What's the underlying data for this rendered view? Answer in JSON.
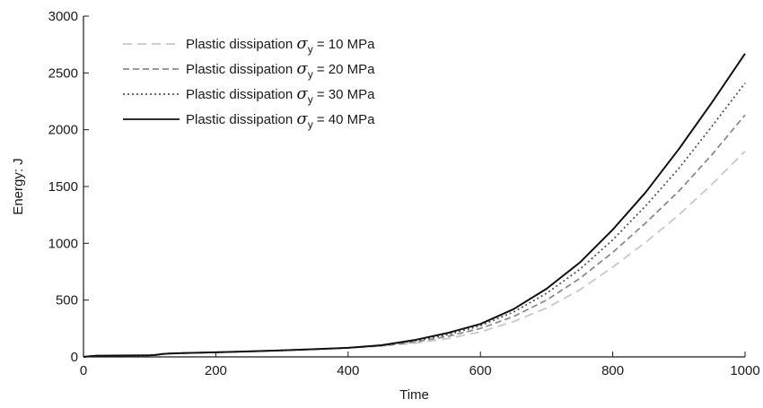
{
  "chart_data": {
    "type": "line",
    "title": "",
    "xlabel": "Time",
    "ylabel": "Energy: J",
    "xlim": [
      0,
      1000
    ],
    "ylim": [
      0,
      3000
    ],
    "x_ticks": [
      0,
      200,
      400,
      600,
      800,
      1000
    ],
    "y_ticks": [
      0,
      500,
      1000,
      1500,
      2000,
      2500,
      3000
    ],
    "grid": false,
    "legend_position": "top-left",
    "x": [
      0,
      10,
      20,
      50,
      100,
      110,
      120,
      130,
      150,
      200,
      250,
      300,
      350,
      400,
      450,
      500,
      550,
      600,
      650,
      700,
      750,
      800,
      850,
      900,
      950,
      1000
    ],
    "series": [
      {
        "legend_prefix": "Plastic dissipation ",
        "legend_symbol": "σ",
        "legend_subscript": "y",
        "legend_value": " = 10 MPa",
        "color": "#c8c8c8",
        "dash": "10,6",
        "values": [
          0,
          6,
          10,
          12,
          14,
          18,
          26,
          30,
          33,
          40,
          48,
          58,
          68,
          80,
          95,
          120,
          160,
          220,
          310,
          430,
          590,
          790,
          1010,
          1250,
          1520,
          1810
        ]
      },
      {
        "legend_prefix": "Plastic dissipation ",
        "legend_symbol": "σ",
        "legend_subscript": "y",
        "legend_value": " = 20 MPa",
        "color": "#8c8c8c",
        "dash": "7,4",
        "values": [
          0,
          6,
          10,
          12,
          14,
          18,
          26,
          30,
          33,
          40,
          48,
          58,
          68,
          80,
          97,
          130,
          180,
          250,
          355,
          500,
          690,
          920,
          1180,
          1460,
          1780,
          2130
        ]
      },
      {
        "legend_prefix": "Plastic dissipation ",
        "legend_symbol": "σ",
        "legend_subscript": "y",
        "legend_value": " = 30 MPa",
        "color": "#555555",
        "dash": "2,3",
        "values": [
          0,
          6,
          10,
          12,
          14,
          18,
          26,
          30,
          33,
          40,
          48,
          58,
          68,
          80,
          100,
          140,
          195,
          275,
          395,
          560,
          770,
          1030,
          1330,
          1660,
          2030,
          2410
        ]
      },
      {
        "legend_prefix": "Plastic dissipation ",
        "legend_symbol": "σ",
        "legend_subscript": "y",
        "legend_value": " = 40 MPa",
        "color": "#111111",
        "dash": "",
        "values": [
          0,
          6,
          10,
          12,
          14,
          18,
          26,
          30,
          33,
          40,
          48,
          58,
          68,
          80,
          103,
          148,
          210,
          290,
          420,
          600,
          830,
          1120,
          1450,
          1830,
          2240,
          2670
        ]
      }
    ]
  }
}
